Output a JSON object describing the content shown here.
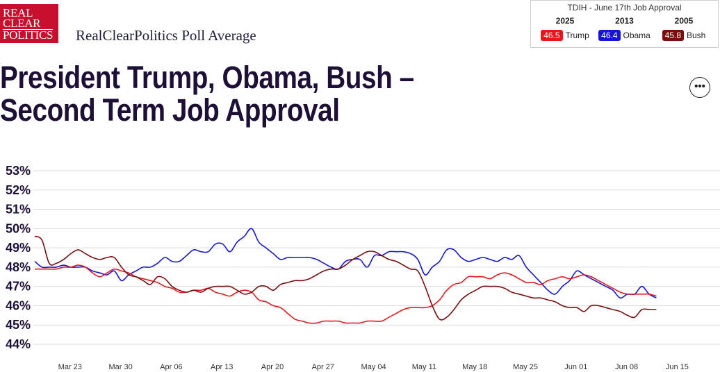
{
  "header": {
    "logo_lines": [
      "REAL",
      "CLEAR",
      "POLITICS"
    ],
    "brand": "RealClearPolitics Poll Average"
  },
  "tdih": {
    "title": "TDIH - June 17th Job Approval",
    "items": [
      {
        "year": "2025",
        "value": "46.5",
        "name": "Trump",
        "color": "#e8161b"
      },
      {
        "year": "2013",
        "value": "46.4",
        "name": "Obama",
        "color": "#1414d8"
      },
      {
        "year": "2005",
        "value": "45.8",
        "name": "Bush",
        "color": "#7a0c0c"
      }
    ]
  },
  "headline": {
    "line1": "President Trump, Obama, Bush –",
    "line2": "Second Term Job Approval"
  },
  "more_button": {
    "label": "•••"
  },
  "chart_data": {
    "type": "line",
    "x_range": [
      0,
      90
    ],
    "ylim": [
      44,
      53
    ],
    "yticks": [
      "53%",
      "52%",
      "51%",
      "50%",
      "49%",
      "48%",
      "47%",
      "46%",
      "45%",
      "44%"
    ],
    "xticks": [
      "Mar 23",
      "Mar 30",
      "Apr 06",
      "Apr 13",
      "Apr 20",
      "Apr 27",
      "May 04",
      "May 11",
      "May 18",
      "May 25",
      "Jun 01",
      "Jun 08",
      "Jun 15"
    ],
    "xtick_positions": [
      2,
      9,
      16,
      23,
      30,
      37,
      44,
      51,
      58,
      65,
      72,
      79,
      86
    ],
    "grid": true,
    "series": [
      {
        "name": "Obama",
        "color": "#1414d8",
        "points": [
          [
            0,
            48.3
          ],
          [
            1,
            48.0
          ],
          [
            2,
            48.0
          ],
          [
            3,
            48.0
          ],
          [
            4,
            48.1
          ],
          [
            5,
            48.0
          ],
          [
            6,
            48.0
          ],
          [
            7,
            48.0
          ],
          [
            8,
            47.8
          ],
          [
            9,
            47.7
          ],
          [
            10,
            47.6
          ],
          [
            11,
            47.8
          ],
          [
            12,
            47.3
          ],
          [
            13,
            47.6
          ],
          [
            14,
            47.8
          ],
          [
            15,
            48.0
          ],
          [
            16,
            48.0
          ],
          [
            17,
            48.2
          ],
          [
            18,
            48.5
          ],
          [
            19,
            48.3
          ],
          [
            20,
            48.3
          ],
          [
            21,
            48.6
          ],
          [
            22,
            48.9
          ],
          [
            23,
            48.8
          ],
          [
            24,
            48.8
          ],
          [
            25,
            49.2
          ],
          [
            26,
            49.2
          ],
          [
            27,
            48.8
          ],
          [
            28,
            49.3
          ],
          [
            29,
            49.6
          ],
          [
            30,
            50.0
          ],
          [
            31,
            49.3
          ],
          [
            32,
            49.0
          ],
          [
            33,
            48.7
          ],
          [
            34,
            48.4
          ],
          [
            35,
            48.5
          ],
          [
            36,
            48.5
          ],
          [
            37,
            48.5
          ],
          [
            38,
            48.5
          ],
          [
            39,
            48.4
          ],
          [
            40,
            48.2
          ],
          [
            41,
            48.0
          ],
          [
            42,
            47.9
          ],
          [
            43,
            48.3
          ],
          [
            44,
            48.4
          ],
          [
            45,
            48.4
          ],
          [
            46,
            48.0
          ],
          [
            47,
            48.6
          ],
          [
            48,
            48.6
          ],
          [
            49,
            48.8
          ],
          [
            50,
            48.8
          ],
          [
            51,
            48.8
          ],
          [
            52,
            48.7
          ],
          [
            53,
            48.4
          ],
          [
            54,
            47.6
          ],
          [
            55,
            48.0
          ],
          [
            56,
            48.3
          ],
          [
            57,
            48.9
          ],
          [
            58,
            48.9
          ],
          [
            59,
            48.5
          ],
          [
            60,
            48.3
          ],
          [
            61,
            48.4
          ],
          [
            62,
            48.5
          ],
          [
            63,
            48.4
          ],
          [
            64,
            48.3
          ],
          [
            65,
            48.5
          ],
          [
            66,
            48.4
          ],
          [
            67,
            48.6
          ],
          [
            68,
            48.0
          ],
          [
            69,
            47.6
          ],
          [
            70,
            47.2
          ],
          [
            71,
            46.8
          ],
          [
            72,
            46.6
          ],
          [
            73,
            47.0
          ],
          [
            74,
            47.3
          ],
          [
            75,
            47.8
          ],
          [
            76,
            47.6
          ],
          [
            77,
            47.4
          ],
          [
            78,
            47.2
          ],
          [
            79,
            47.0
          ],
          [
            80,
            46.8
          ],
          [
            81,
            46.4
          ],
          [
            82,
            46.6
          ],
          [
            83,
            46.6
          ],
          [
            84,
            47.0
          ],
          [
            85,
            46.6
          ],
          [
            86,
            46.4
          ]
        ]
      },
      {
        "name": "Trump",
        "color": "#e8161b",
        "points": [
          [
            0,
            47.9
          ],
          [
            1,
            47.9
          ],
          [
            2,
            47.9
          ],
          [
            3,
            47.9
          ],
          [
            4,
            48.0
          ],
          [
            5,
            48.0
          ],
          [
            6,
            48.1
          ],
          [
            7,
            48.0
          ],
          [
            8,
            47.7
          ],
          [
            9,
            47.5
          ],
          [
            10,
            47.7
          ],
          [
            11,
            47.9
          ],
          [
            12,
            47.8
          ],
          [
            13,
            47.7
          ],
          [
            14,
            47.5
          ],
          [
            15,
            47.4
          ],
          [
            16,
            47.3
          ],
          [
            17,
            47.2
          ],
          [
            18,
            47.0
          ],
          [
            19,
            46.9
          ],
          [
            20,
            46.7
          ],
          [
            21,
            46.7
          ],
          [
            22,
            46.8
          ],
          [
            23,
            46.8
          ],
          [
            24,
            46.9
          ],
          [
            25,
            46.7
          ],
          [
            26,
            46.6
          ],
          [
            27,
            46.5
          ],
          [
            28,
            46.7
          ],
          [
            29,
            46.8
          ],
          [
            30,
            46.7
          ],
          [
            31,
            46.3
          ],
          [
            32,
            46.2
          ],
          [
            33,
            46.0
          ],
          [
            34,
            45.9
          ],
          [
            35,
            45.6
          ],
          [
            36,
            45.3
          ],
          [
            37,
            45.2
          ],
          [
            38,
            45.1
          ],
          [
            39,
            45.1
          ],
          [
            40,
            45.2
          ],
          [
            41,
            45.2
          ],
          [
            42,
            45.2
          ],
          [
            43,
            45.1
          ],
          [
            44,
            45.1
          ],
          [
            45,
            45.1
          ],
          [
            46,
            45.2
          ],
          [
            47,
            45.2
          ],
          [
            48,
            45.2
          ],
          [
            49,
            45.4
          ],
          [
            50,
            45.6
          ],
          [
            51,
            45.8
          ],
          [
            52,
            45.9
          ],
          [
            53,
            45.9
          ],
          [
            54,
            45.9
          ],
          [
            55,
            46.0
          ],
          [
            56,
            46.3
          ],
          [
            57,
            46.8
          ],
          [
            58,
            47.1
          ],
          [
            59,
            47.2
          ],
          [
            60,
            47.5
          ],
          [
            61,
            47.5
          ],
          [
            62,
            47.5
          ],
          [
            63,
            47.4
          ],
          [
            64,
            47.6
          ],
          [
            65,
            47.7
          ],
          [
            66,
            47.6
          ],
          [
            67,
            47.4
          ],
          [
            68,
            47.2
          ],
          [
            69,
            47.2
          ],
          [
            70,
            47.1
          ],
          [
            71,
            47.3
          ],
          [
            72,
            47.4
          ],
          [
            73,
            47.5
          ],
          [
            74,
            47.4
          ],
          [
            75,
            47.5
          ],
          [
            76,
            47.6
          ],
          [
            77,
            47.5
          ],
          [
            78,
            47.3
          ],
          [
            79,
            47.1
          ],
          [
            80,
            46.9
          ],
          [
            81,
            46.7
          ],
          [
            82,
            46.6
          ],
          [
            83,
            46.6
          ],
          [
            84,
            46.6
          ],
          [
            85,
            46.6
          ],
          [
            86,
            46.5
          ]
        ]
      },
      {
        "name": "Bush",
        "color": "#7a0c0c",
        "points": [
          [
            0,
            49.6
          ],
          [
            1,
            49.4
          ],
          [
            2,
            48.2
          ],
          [
            3,
            48.2
          ],
          [
            4,
            48.4
          ],
          [
            5,
            48.7
          ],
          [
            6,
            48.9
          ],
          [
            7,
            48.7
          ],
          [
            8,
            48.5
          ],
          [
            9,
            48.4
          ],
          [
            10,
            48.5
          ],
          [
            11,
            48.5
          ],
          [
            12,
            48.0
          ],
          [
            13,
            47.6
          ],
          [
            14,
            47.5
          ],
          [
            15,
            47.3
          ],
          [
            16,
            47.1
          ],
          [
            17,
            47.5
          ],
          [
            18,
            47.4
          ],
          [
            19,
            47.0
          ],
          [
            20,
            46.8
          ],
          [
            21,
            46.7
          ],
          [
            22,
            46.8
          ],
          [
            23,
            46.7
          ],
          [
            24,
            46.9
          ],
          [
            25,
            47.0
          ],
          [
            26,
            47.0
          ],
          [
            27,
            47.0
          ],
          [
            28,
            46.8
          ],
          [
            29,
            46.6
          ],
          [
            30,
            46.7
          ],
          [
            31,
            47.0
          ],
          [
            32,
            47.0
          ],
          [
            33,
            46.8
          ],
          [
            34,
            47.1
          ],
          [
            35,
            47.2
          ],
          [
            36,
            47.3
          ],
          [
            37,
            47.3
          ],
          [
            38,
            47.4
          ],
          [
            39,
            47.6
          ],
          [
            40,
            47.8
          ],
          [
            41,
            47.9
          ],
          [
            42,
            47.9
          ],
          [
            43,
            48.1
          ],
          [
            44,
            48.4
          ],
          [
            45,
            48.6
          ],
          [
            46,
            48.8
          ],
          [
            47,
            48.8
          ],
          [
            48,
            48.6
          ],
          [
            49,
            48.4
          ],
          [
            50,
            48.3
          ],
          [
            51,
            48.1
          ],
          [
            52,
            47.9
          ],
          [
            53,
            47.8
          ],
          [
            54,
            47.0
          ],
          [
            55,
            46.0
          ],
          [
            56,
            45.3
          ],
          [
            57,
            45.4
          ],
          [
            58,
            45.8
          ],
          [
            59,
            46.3
          ],
          [
            60,
            46.6
          ],
          [
            61,
            46.8
          ],
          [
            62,
            47.0
          ],
          [
            63,
            47.0
          ],
          [
            64,
            47.0
          ],
          [
            65,
            46.9
          ],
          [
            66,
            46.7
          ],
          [
            67,
            46.6
          ],
          [
            68,
            46.5
          ],
          [
            69,
            46.4
          ],
          [
            70,
            46.4
          ],
          [
            71,
            46.3
          ],
          [
            72,
            46.2
          ],
          [
            73,
            46.0
          ],
          [
            74,
            45.9
          ],
          [
            75,
            45.9
          ],
          [
            76,
            45.7
          ],
          [
            77,
            46.0
          ],
          [
            78,
            46.0
          ],
          [
            79,
            45.9
          ],
          [
            80,
            45.8
          ],
          [
            81,
            45.7
          ],
          [
            82,
            45.5
          ],
          [
            83,
            45.4
          ],
          [
            84,
            45.8
          ],
          [
            85,
            45.8
          ],
          [
            86,
            45.8
          ]
        ]
      }
    ]
  }
}
